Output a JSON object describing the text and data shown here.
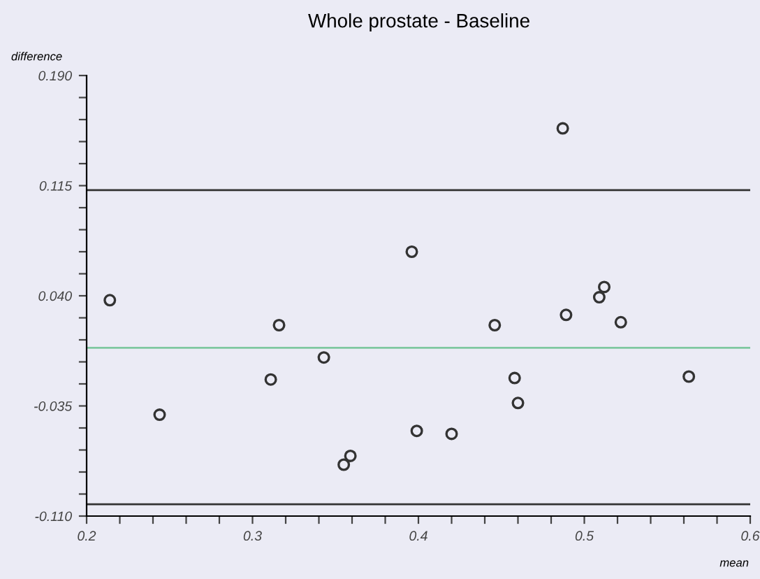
{
  "chart_data": {
    "type": "scatter",
    "title": "Whole prostate - Baseline",
    "xlabel": "mean",
    "ylabel": "difference",
    "x": [
      0.214,
      0.244,
      0.316,
      0.311,
      0.343,
      0.355,
      0.359,
      0.487,
      0.396,
      0.512,
      0.509,
      0.489,
      0.522,
      0.446,
      0.458,
      0.563,
      0.46,
      0.399,
      0.42
    ],
    "values": [
      0.037,
      -0.041,
      0.02,
      -0.017,
      -0.002,
      -0.075,
      -0.069,
      0.154,
      0.07,
      0.046,
      0.039,
      0.027,
      0.022,
      0.02,
      -0.016,
      -0.015,
      -0.033,
      -0.052,
      -0.054
    ],
    "color": "#333333",
    "marker": "circle",
    "grid": false,
    "xlim": [
      0.2,
      0.6
    ],
    "ylim": [
      -0.11,
      0.19
    ],
    "xticks": [
      0.2,
      {
        "value": 0.22,
        "label": null
      },
      {
        "value": 0.24,
        "label": null
      },
      {
        "value": 0.26,
        "label": null
      },
      {
        "value": 0.28,
        "label": null
      },
      0.3,
      {
        "value": 0.32,
        "label": null
      },
      {
        "value": 0.34,
        "label": null
      },
      {
        "value": 0.36,
        "label": null
      },
      {
        "value": 0.38,
        "label": null
      },
      0.4,
      {
        "value": 0.42,
        "label": null
      },
      {
        "value": 0.44,
        "label": null
      },
      {
        "value": 0.46,
        "label": null
      },
      {
        "value": 0.48,
        "label": null
      },
      0.5,
      {
        "value": 0.52,
        "label": null
      },
      {
        "value": 0.54,
        "label": null
      },
      {
        "value": 0.56,
        "label": null
      },
      {
        "value": 0.58,
        "label": null
      },
      0.6
    ],
    "yticks": [
      {
        "value": -0.11,
        "label": "-0.110"
      },
      {
        "value": -0.095,
        "label": null
      },
      {
        "value": -0.08,
        "label": null
      },
      {
        "value": -0.065,
        "label": null
      },
      {
        "value": -0.05,
        "label": null
      },
      {
        "value": -0.035,
        "label": "-0.035"
      },
      {
        "value": -0.02,
        "label": null
      },
      {
        "value": -0.005,
        "label": null
      },
      {
        "value": 0.01,
        "label": null
      },
      {
        "value": 0.025,
        "label": null
      },
      {
        "value": 0.04,
        "label": "0.040"
      },
      {
        "value": 0.055,
        "label": null
      },
      {
        "value": 0.07,
        "label": null
      },
      {
        "value": 0.085,
        "label": null
      },
      {
        "value": 0.1,
        "label": null
      },
      {
        "value": 0.115,
        "label": "0.115"
      },
      {
        "value": 0.13,
        "label": null
      },
      {
        "value": 0.145,
        "label": null
      },
      {
        "value": 0.16,
        "label": null
      },
      {
        "value": 0.175,
        "label": null
      },
      {
        "value": 0.19,
        "label": "0.190"
      }
    ],
    "ref_lines": [
      {
        "axis": "y",
        "value": 0.112,
        "color": "#333333",
        "line_style": "solid"
      },
      {
        "axis": "y",
        "value": 0.0046,
        "color": "#7fc8a0",
        "line_style": "solid"
      },
      {
        "axis": "y",
        "value": -0.102,
        "color": "#333333",
        "line_style": "solid"
      }
    ]
  }
}
